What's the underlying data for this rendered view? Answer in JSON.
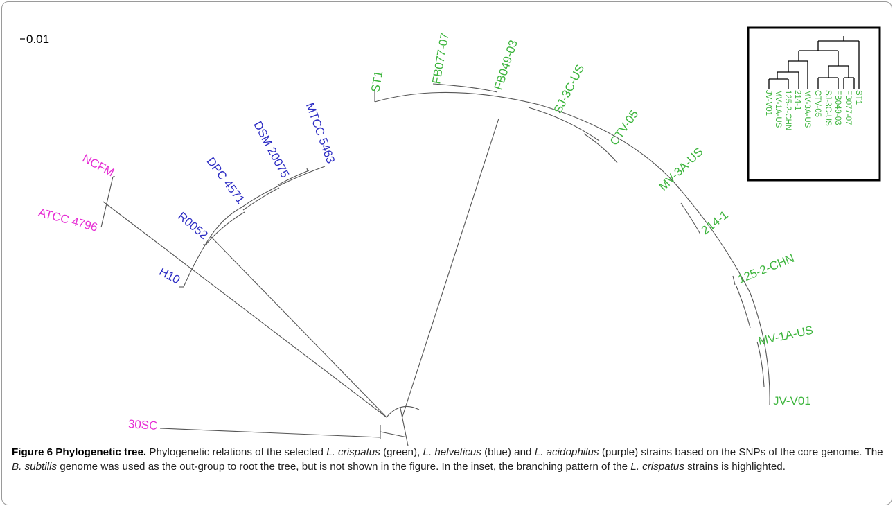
{
  "scale_bar": {
    "label": "0.01"
  },
  "colors": {
    "crispatus": "#3db53d",
    "helveticus": "#2e2ec4",
    "acidophilus": "#e62ed4",
    "branch": "#555555"
  },
  "leaves": {
    "ST1": "ST1",
    "FB077_07": "FB077-07",
    "FB049_03": "FB049-03",
    "SJ_3C_US": "SJ-3C-US",
    "CTV_05": "CTV-05",
    "MV_3A_US": "MV-3A-US",
    "L214_1": "214-1",
    "L125_2_CHN": "125-2-CHN",
    "MV_1A_US": "MV-1A-US",
    "JV_V01": "JV-V01",
    "MTCC_5463": "MTCC 5463",
    "DSM_20075": "DSM 20075",
    "DPC_4571": "DPC 4571",
    "R0052": "R0052",
    "H10": "H10",
    "NCFM": "NCFM",
    "ATCC_4796": "ATCC 4796",
    "S30SC": "30SC"
  },
  "inset": {
    "leaves": [
      "JV-V01",
      "MV-1A-US",
      "125-2-CHN",
      "214-1",
      "MV-3A-US",
      "CTV-05",
      "SJ-3C-US",
      "FB049-03",
      "FB077-07",
      "ST1"
    ]
  },
  "caption": {
    "figure_label": "Figure 6 Phylogenetic tree.",
    "t1": " Phylogenetic relations of the selected ",
    "sp1": "L. crispatus",
    "t2": " (green), ",
    "sp2": "L. helveticus",
    "t3": " (blue) and ",
    "sp3": "L. acidophilus",
    "t4": " (purple) strains based on the SNPs of the core genome. The ",
    "sp4": "B. subtilis",
    "t5": " genome was used as the out-group to root the tree, but is not shown in the figure. In the inset, the branching pattern of the ",
    "sp5": "L. crispatus",
    "t6": " strains is highlighted."
  }
}
